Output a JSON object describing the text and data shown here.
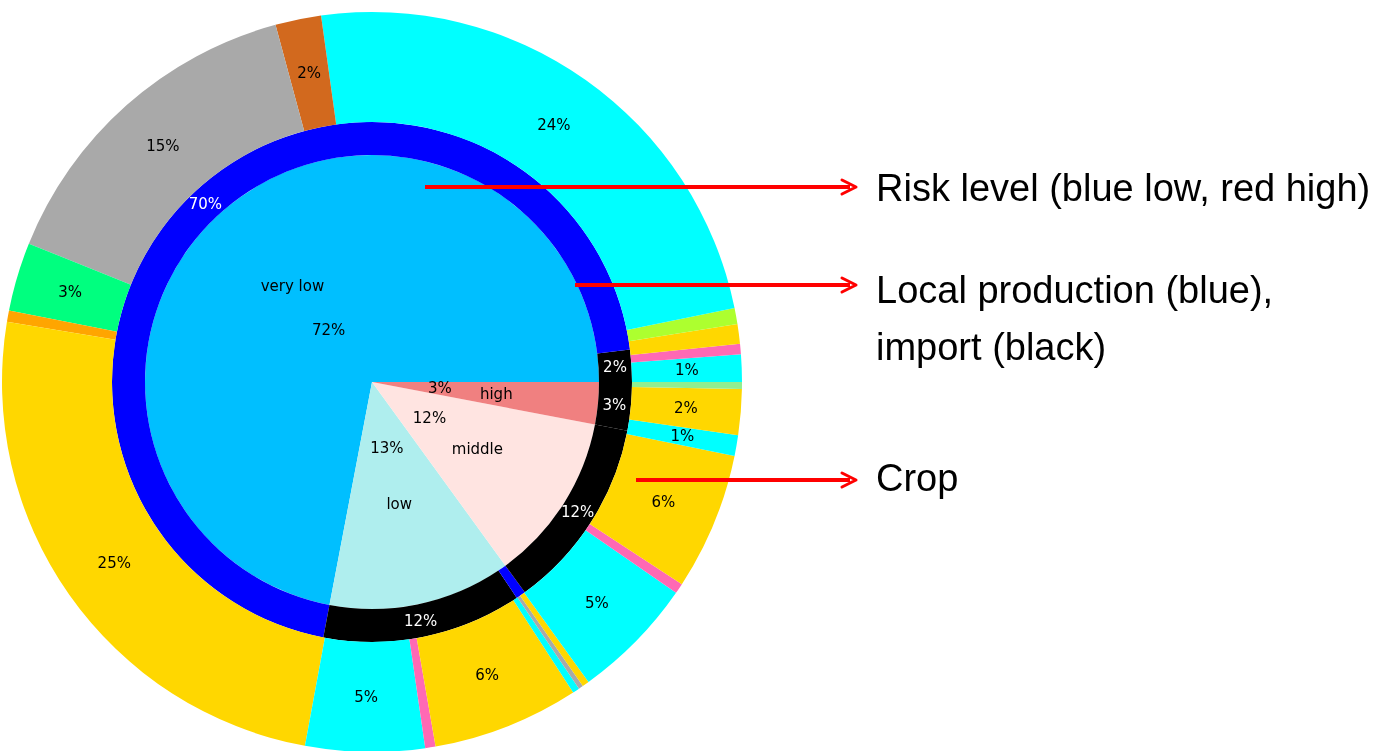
{
  "chart_data": [
    {
      "type": "pie",
      "categories": [
        "very low",
        "low",
        "middle",
        "high"
      ],
      "values": [
        72,
        13,
        12,
        3
      ],
      "colors": [
        "#00bfff",
        "#afeeee",
        "#ffe4e1",
        "#f08080"
      ],
      "value_labels": [
        "72%",
        "13%",
        "12%",
        "3%"
      ],
      "annotations": [
        "Risk level (blue low, red high)"
      ]
    },
    {
      "type": "donut",
      "categories": [
        null,
        null,
        null,
        null,
        null,
        null
      ],
      "values": [
        2,
        70,
        12.4,
        0.6,
        12,
        3
      ],
      "colors": [
        "#000000",
        "#0000ff",
        "#000000",
        "#0000ff",
        "#000000",
        "#000000"
      ],
      "value_labels": [
        "2%",
        "70%",
        "12%",
        null,
        "12%",
        "3%"
      ],
      "annotations": [
        "Local production (blue), import (black)"
      ]
    },
    {
      "type": "donut",
      "categories": [
        null,
        null,
        null,
        null,
        null,
        null,
        null,
        null,
        null,
        null,
        null,
        null,
        null,
        null,
        null,
        null,
        null,
        null,
        null,
        null,
        null,
        null
      ],
      "values": [
        1.2,
        0.45,
        0.85,
        0.7,
        24,
        2,
        14.7,
        3,
        0.5,
        24.7,
        5.2,
        0.45,
        6.4,
        0.3,
        0.2,
        0.3,
        5.4,
        0.45,
        6,
        0.9,
        2,
        0.3
      ],
      "colors": [
        "#00ffff",
        "#ff69b4",
        "#ffd700",
        "#adff2f",
        "#00ffff",
        "#d2691e",
        "#a9a9a9",
        "#00ff7f",
        "#ffa500",
        "#ffd700",
        "#00ffff",
        "#ff69b4",
        "#ffd700",
        "#00ffff",
        "#a9a9a9",
        "#ffd700",
        "#00ffff",
        "#ff69b4",
        "#ffd700",
        "#00ffff",
        "#ffd700",
        "#90ee90"
      ],
      "value_labels": [
        "1%",
        null,
        null,
        null,
        "24%",
        "2%",
        "15%",
        "3%",
        null,
        "25%",
        "5%",
        null,
        "6%",
        null,
        null,
        null,
        "5%",
        null,
        "6%",
        "1%",
        "2%",
        null
      ],
      "annotations": [
        "Crop"
      ]
    }
  ]
}
